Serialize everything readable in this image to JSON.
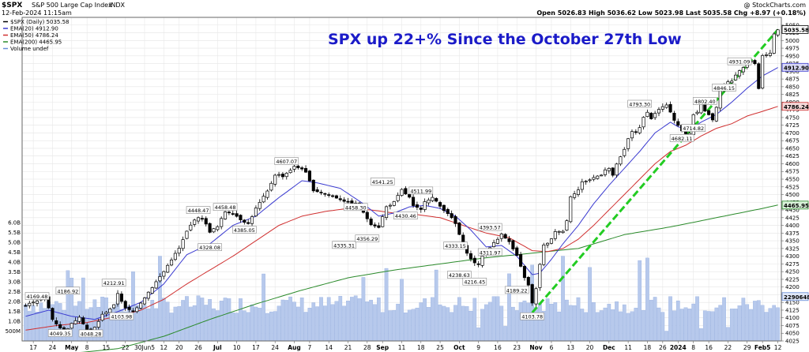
{
  "header": {
    "symbol": "$SPX",
    "name": "S&P 500 Large Cap Index",
    "exchange": "INDX",
    "timestamp": "12-Feb-2024 11:15am",
    "credit": "@ StockCharts.com",
    "ohlc": "Open 5026.83  High 5036.62  Low 5023.98  Last 5035.58  Chg +8.97 (+0.18%)"
  },
  "chart_data": {
    "type": "candlestick",
    "title": "SPX up 22+% Since the October 27th Low",
    "legend": [
      {
        "label": "$SPX (Daily) 5035.58",
        "color": "#000000"
      },
      {
        "label": "EMA(20) 4912.90",
        "color": "#3a3ad0"
      },
      {
        "label": "EMA(50) 4786.24",
        "color": "#d03030"
      },
      {
        "label": "EMA(200) 4465.95",
        "color": "#2a8a2a"
      },
      {
        "label": "Volume undef",
        "color": "#6a8ed8"
      }
    ],
    "price_range": [
      4025,
      5075
    ],
    "price_ticks": [
      4025,
      4050,
      4075,
      4100,
      4125,
      4150,
      4175,
      4200,
      4225,
      4250,
      4275,
      4300,
      4325,
      4350,
      4375,
      4400,
      4425,
      4450,
      4475,
      4500,
      4525,
      4550,
      4575,
      4600,
      4625,
      4650,
      4675,
      4700,
      4725,
      4750,
      4775,
      4800,
      4825,
      4850,
      4875,
      4900,
      4925,
      4950,
      4975,
      5000,
      5025,
      5050
    ],
    "volume_ticks": [
      {
        "label": "500M",
        "value": 0.5
      },
      {
        "label": "1.0B",
        "value": 1.0
      },
      {
        "label": "1.5B",
        "value": 1.5
      },
      {
        "label": "2.0B",
        "value": 2.0
      },
      {
        "label": "2.5B",
        "value": 2.5
      },
      {
        "label": "3.0B",
        "value": 3.0
      },
      {
        "label": "3.5B",
        "value": 3.5
      },
      {
        "label": "4.0B",
        "value": 4.0
      },
      {
        "label": "4.5B",
        "value": 4.5
      },
      {
        "label": "5.0B",
        "value": 5.0
      },
      {
        "label": "5.5B",
        "value": 5.5
      },
      {
        "label": "6.0B",
        "value": 6.0
      }
    ],
    "x_ticks": [
      {
        "i": 2,
        "label": "17"
      },
      {
        "i": 7,
        "label": "24"
      },
      {
        "i": 12,
        "label": "May",
        "bold": true
      },
      {
        "i": 16,
        "label": "8"
      },
      {
        "i": 21,
        "label": "15"
      },
      {
        "i": 26,
        "label": "22"
      },
      {
        "i": 31,
        "label": "30Jun5"
      },
      {
        "i": 36,
        "label": "12"
      },
      {
        "i": 40,
        "label": "20"
      },
      {
        "i": 45,
        "label": "26"
      },
      {
        "i": 50,
        "label": "Jul",
        "bold": true
      },
      {
        "i": 55,
        "label": "10"
      },
      {
        "i": 60,
        "label": "17"
      },
      {
        "i": 65,
        "label": "24"
      },
      {
        "i": 70,
        "label": "Aug",
        "bold": true
      },
      {
        "i": 74,
        "label": "7"
      },
      {
        "i": 79,
        "label": "14"
      },
      {
        "i": 84,
        "label": "21"
      },
      {
        "i": 89,
        "label": "28"
      },
      {
        "i": 93,
        "label": "Sep",
        "bold": true
      },
      {
        "i": 98,
        "label": "11"
      },
      {
        "i": 103,
        "label": "18"
      },
      {
        "i": 108,
        "label": "25"
      },
      {
        "i": 113,
        "label": "Oct",
        "bold": true
      },
      {
        "i": 118,
        "label": "9"
      },
      {
        "i": 123,
        "label": "16"
      },
      {
        "i": 128,
        "label": "23"
      },
      {
        "i": 133,
        "label": "Nov",
        "bold": true
      },
      {
        "i": 137,
        "label": "6"
      },
      {
        "i": 142,
        "label": "13"
      },
      {
        "i": 147,
        "label": "20"
      },
      {
        "i": 152,
        "label": "Dec",
        "bold": true
      },
      {
        "i": 157,
        "label": "11"
      },
      {
        "i": 162,
        "label": "18"
      },
      {
        "i": 166,
        "label": "26"
      },
      {
        "i": 170,
        "label": "2024",
        "bold": true
      },
      {
        "i": 174,
        "label": "8"
      },
      {
        "i": 178,
        "label": "16"
      },
      {
        "i": 183,
        "label": "22"
      },
      {
        "i": 188,
        "label": "29"
      },
      {
        "i": 192,
        "label": "Feb5",
        "bold": true
      },
      {
        "i": 196,
        "label": "12"
      }
    ],
    "price_path": [
      [
        0,
        4140
      ],
      [
        5,
        4168
      ],
      [
        7,
        4095
      ],
      [
        10,
        4055
      ],
      [
        12,
        4080
      ],
      [
        14,
        4105
      ],
      [
        16,
        4060
      ],
      [
        17,
        4048
      ],
      [
        20,
        4110
      ],
      [
        23,
        4140
      ],
      [
        24,
        4180
      ],
      [
        26,
        4130
      ],
      [
        28,
        4120
      ],
      [
        30,
        4150
      ],
      [
        33,
        4200
      ],
      [
        36,
        4250
      ],
      [
        38,
        4290
      ],
      [
        40,
        4325
      ],
      [
        42,
        4380
      ],
      [
        44,
        4420
      ],
      [
        46,
        4425
      ],
      [
        48,
        4380
      ],
      [
        50,
        4395
      ],
      [
        52,
        4445
      ],
      [
        54,
        4440
      ],
      [
        56,
        4420
      ],
      [
        58,
        4405
      ],
      [
        60,
        4455
      ],
      [
        63,
        4510
      ],
      [
        65,
        4565
      ],
      [
        67,
        4560
      ],
      [
        70,
        4590
      ],
      [
        72,
        4585
      ],
      [
        73,
        4570
      ],
      [
        75,
        4515
      ],
      [
        78,
        4502
      ],
      [
        80,
        4495
      ],
      [
        82,
        4485
      ],
      [
        84,
        4475
      ],
      [
        86,
        4470
      ],
      [
        88,
        4440
      ],
      [
        90,
        4405
      ],
      [
        92,
        4395
      ],
      [
        94,
        4460
      ],
      [
        96,
        4475
      ],
      [
        98,
        4515
      ],
      [
        100,
        4490
      ],
      [
        101,
        4462
      ],
      [
        103,
        4450
      ],
      [
        104,
        4480
      ],
      [
        106,
        4490
      ],
      [
        108,
        4462
      ],
      [
        110,
        4440
      ],
      [
        112,
        4405
      ],
      [
        114,
        4335
      ],
      [
        116,
        4290
      ],
      [
        118,
        4270
      ],
      [
        119,
        4302
      ],
      [
        121,
        4330
      ],
      [
        123,
        4355
      ],
      [
        124,
        4375
      ],
      [
        126,
        4346
      ],
      [
        128,
        4300
      ],
      [
        129,
        4265
      ],
      [
        130,
        4232
      ],
      [
        131,
        4205
      ],
      [
        132,
        4147
      ],
      [
        133,
        4193
      ],
      [
        134,
        4275
      ],
      [
        135,
        4335
      ],
      [
        136,
        4340
      ],
      [
        137,
        4358
      ],
      [
        138,
        4378
      ],
      [
        139,
        4383
      ],
      [
        140,
        4382
      ],
      [
        141,
        4415
      ],
      [
        142,
        4495
      ],
      [
        143,
        4505
      ],
      [
        144,
        4515
      ],
      [
        145,
        4540
      ],
      [
        146,
        4545
      ],
      [
        147,
        4548
      ],
      [
        148,
        4555
      ],
      [
        149,
        4560
      ],
      [
        150,
        4565
      ],
      [
        151,
        4582
      ],
      [
        152,
        4585
      ],
      [
        153,
        4560
      ],
      [
        154,
        4600
      ],
      [
        155,
        4620
      ],
      [
        156,
        4645
      ],
      [
        157,
        4680
      ],
      [
        158,
        4705
      ],
      [
        159,
        4705
      ],
      [
        160,
        4715
      ],
      [
        161,
        4750
      ],
      [
        162,
        4770
      ],
      [
        163,
        4745
      ],
      [
        164,
        4765
      ],
      [
        165,
        4775
      ],
      [
        166,
        4785
      ],
      [
        167,
        4788
      ],
      [
        168,
        4770
      ],
      [
        169,
        4742
      ],
      [
        170,
        4725
      ],
      [
        171,
        4705
      ],
      [
        172,
        4697
      ],
      [
        173,
        4700
      ],
      [
        174,
        4760
      ],
      [
        175,
        4770
      ],
      [
        176,
        4795
      ],
      [
        177,
        4770
      ],
      [
        178,
        4760
      ],
      [
        179,
        4740
      ],
      [
        180,
        4785
      ],
      [
        181,
        4840
      ],
      [
        182,
        4850
      ],
      [
        183,
        4865
      ],
      [
        184,
        4870
      ],
      [
        185,
        4890
      ],
      [
        186,
        4900
      ],
      [
        187,
        4915
      ],
      [
        188,
        4935
      ],
      [
        189,
        4935
      ],
      [
        190,
        4925
      ],
      [
        191,
        4845
      ],
      [
        192,
        4950
      ],
      [
        193,
        4955
      ],
      [
        194,
        4958
      ],
      [
        195,
        5020
      ],
      [
        196,
        5035
      ]
    ],
    "ema20_path": [
      [
        0,
        4105
      ],
      [
        6,
        4125
      ],
      [
        12,
        4105
      ],
      [
        18,
        4095
      ],
      [
        24,
        4120
      ],
      [
        30,
        4150
      ],
      [
        36,
        4210
      ],
      [
        42,
        4305
      ],
      [
        48,
        4340
      ],
      [
        54,
        4400
      ],
      [
        60,
        4430
      ],
      [
        66,
        4490
      ],
      [
        72,
        4545
      ],
      [
        76,
        4538
      ],
      [
        82,
        4520
      ],
      [
        88,
        4470
      ],
      [
        92,
        4430
      ],
      [
        96,
        4440
      ],
      [
        100,
        4460
      ],
      [
        104,
        4465
      ],
      [
        108,
        4455
      ],
      [
        112,
        4430
      ],
      [
        116,
        4385
      ],
      [
        120,
        4330
      ],
      [
        124,
        4335
      ],
      [
        128,
        4300
      ],
      [
        132,
        4240
      ],
      [
        134,
        4245
      ],
      [
        137,
        4290
      ],
      [
        140,
        4340
      ],
      [
        144,
        4400
      ],
      [
        148,
        4470
      ],
      [
        152,
        4530
      ],
      [
        156,
        4585
      ],
      [
        160,
        4640
      ],
      [
        164,
        4700
      ],
      [
        168,
        4735
      ],
      [
        170,
        4720
      ],
      [
        173,
        4710
      ],
      [
        176,
        4735
      ],
      [
        180,
        4760
      ],
      [
        184,
        4800
      ],
      [
        188,
        4845
      ],
      [
        192,
        4885
      ],
      [
        196,
        4912
      ]
    ],
    "ema50_path": [
      [
        0,
        4060
      ],
      [
        8,
        4075
      ],
      [
        16,
        4085
      ],
      [
        24,
        4105
      ],
      [
        30,
        4125
      ],
      [
        36,
        4160
      ],
      [
        42,
        4210
      ],
      [
        48,
        4255
      ],
      [
        54,
        4300
      ],
      [
        60,
        4350
      ],
      [
        66,
        4400
      ],
      [
        72,
        4430
      ],
      [
        78,
        4445
      ],
      [
        84,
        4455
      ],
      [
        90,
        4450
      ],
      [
        96,
        4440
      ],
      [
        102,
        4435
      ],
      [
        108,
        4425
      ],
      [
        114,
        4400
      ],
      [
        120,
        4375
      ],
      [
        126,
        4360
      ],
      [
        132,
        4318
      ],
      [
        136,
        4315
      ],
      [
        140,
        4325
      ],
      [
        144,
        4355
      ],
      [
        148,
        4400
      ],
      [
        152,
        4450
      ],
      [
        156,
        4500
      ],
      [
        160,
        4550
      ],
      [
        164,
        4600
      ],
      [
        168,
        4640
      ],
      [
        172,
        4660
      ],
      [
        176,
        4690
      ],
      [
        180,
        4715
      ],
      [
        184,
        4730
      ],
      [
        188,
        4755
      ],
      [
        192,
        4770
      ],
      [
        196,
        4786
      ]
    ],
    "ema200_path": [
      [
        0,
        3975
      ],
      [
        12,
        3985
      ],
      [
        24,
        4000
      ],
      [
        36,
        4040
      ],
      [
        48,
        4095
      ],
      [
        60,
        4145
      ],
      [
        72,
        4190
      ],
      [
        84,
        4230
      ],
      [
        96,
        4255
      ],
      [
        108,
        4275
      ],
      [
        120,
        4295
      ],
      [
        132,
        4310
      ],
      [
        144,
        4325
      ],
      [
        156,
        4370
      ],
      [
        168,
        4395
      ],
      [
        180,
        4425
      ],
      [
        192,
        4455
      ],
      [
        196,
        4466
      ]
    ],
    "trendline": {
      "from": [
        132,
        4117
      ],
      "to": [
        196,
        5035
      ]
    },
    "labels": [
      {
        "i": 3,
        "v": 4169.48,
        "text": "4169.48"
      },
      {
        "i": 9,
        "v": 4049.35,
        "text": "4049.35"
      },
      {
        "i": 11,
        "v": 4186.92,
        "text": "4186.92"
      },
      {
        "i": 17,
        "v": 4048.28,
        "text": "4048.28"
      },
      {
        "i": 23,
        "v": 4212.91,
        "text": "4212.91"
      },
      {
        "i": 25,
        "v": 4103.98,
        "text": "4103.98"
      },
      {
        "i": 45,
        "v": 4448.47,
        "text": "4448.47"
      },
      {
        "i": 48,
        "v": 4328.08,
        "text": "4328.08"
      },
      {
        "i": 52,
        "v": 4458.48,
        "text": "4458.48"
      },
      {
        "i": 57,
        "v": 4385.05,
        "text": "4385.05"
      },
      {
        "i": 68,
        "v": 4607.07,
        "text": "4607.07"
      },
      {
        "i": 83,
        "v": 4335.31,
        "text": "4335.31"
      },
      {
        "i": 86,
        "v": 4458.3,
        "text": "4458.30"
      },
      {
        "i": 89,
        "v": 4356.29,
        "text": "4356.29"
      },
      {
        "i": 93,
        "v": 4541.25,
        "text": "4541.25"
      },
      {
        "i": 99,
        "v": 4430.46,
        "text": "4430.46"
      },
      {
        "i": 103,
        "v": 4511.99,
        "text": "4511.99"
      },
      {
        "i": 112,
        "v": 4333.15,
        "text": "4333.15"
      },
      {
        "i": 113,
        "v": 4238.63,
        "text": "4238.63"
      },
      {
        "i": 117,
        "v": 4216.45,
        "text": "4216.45"
      },
      {
        "i": 121,
        "v": 4311.97,
        "text": "4311.97"
      },
      {
        "i": 121,
        "v": 4393.57,
        "text": "4393.57"
      },
      {
        "i": 128,
        "v": 4189.22,
        "text": "4189.22"
      },
      {
        "i": 132,
        "v": 4103.78,
        "text": "4103.78"
      },
      {
        "i": 160,
        "v": 4793.3,
        "text": "4793.30"
      },
      {
        "i": 171,
        "v": 4682.11,
        "text": "4682.11"
      },
      {
        "i": 174,
        "v": 4714.82,
        "text": "4714.82"
      },
      {
        "i": 177,
        "v": 4802.4,
        "text": "4802.40"
      },
      {
        "i": 182,
        "v": 4846.15,
        "text": "4846.15"
      },
      {
        "i": 186,
        "v": 4931.09,
        "text": "4931.09"
      }
    ],
    "right_labels": [
      {
        "v": 5035.58,
        "text": "5035.58",
        "fill": "#ffffff",
        "stroke": "#000000",
        "color": "#000000"
      },
      {
        "v": 4912.9,
        "text": "4912.90",
        "fill": "#d8d8f4",
        "stroke": "#3a3ad0",
        "color": "#000000"
      },
      {
        "v": 4786.24,
        "text": "4786.24",
        "fill": "#f4d8d8",
        "stroke": "#d03030",
        "color": "#000000"
      },
      {
        "v": 4465.95,
        "text": "4465.95",
        "fill": "#d8f0d8",
        "stroke": "#2a8a2a",
        "color": "#000000"
      },
      {
        "vol": 2.25,
        "text": "2290648",
        "fill": "#dfe7f8",
        "stroke": "#6a8ed8",
        "color": "#000000"
      }
    ]
  }
}
